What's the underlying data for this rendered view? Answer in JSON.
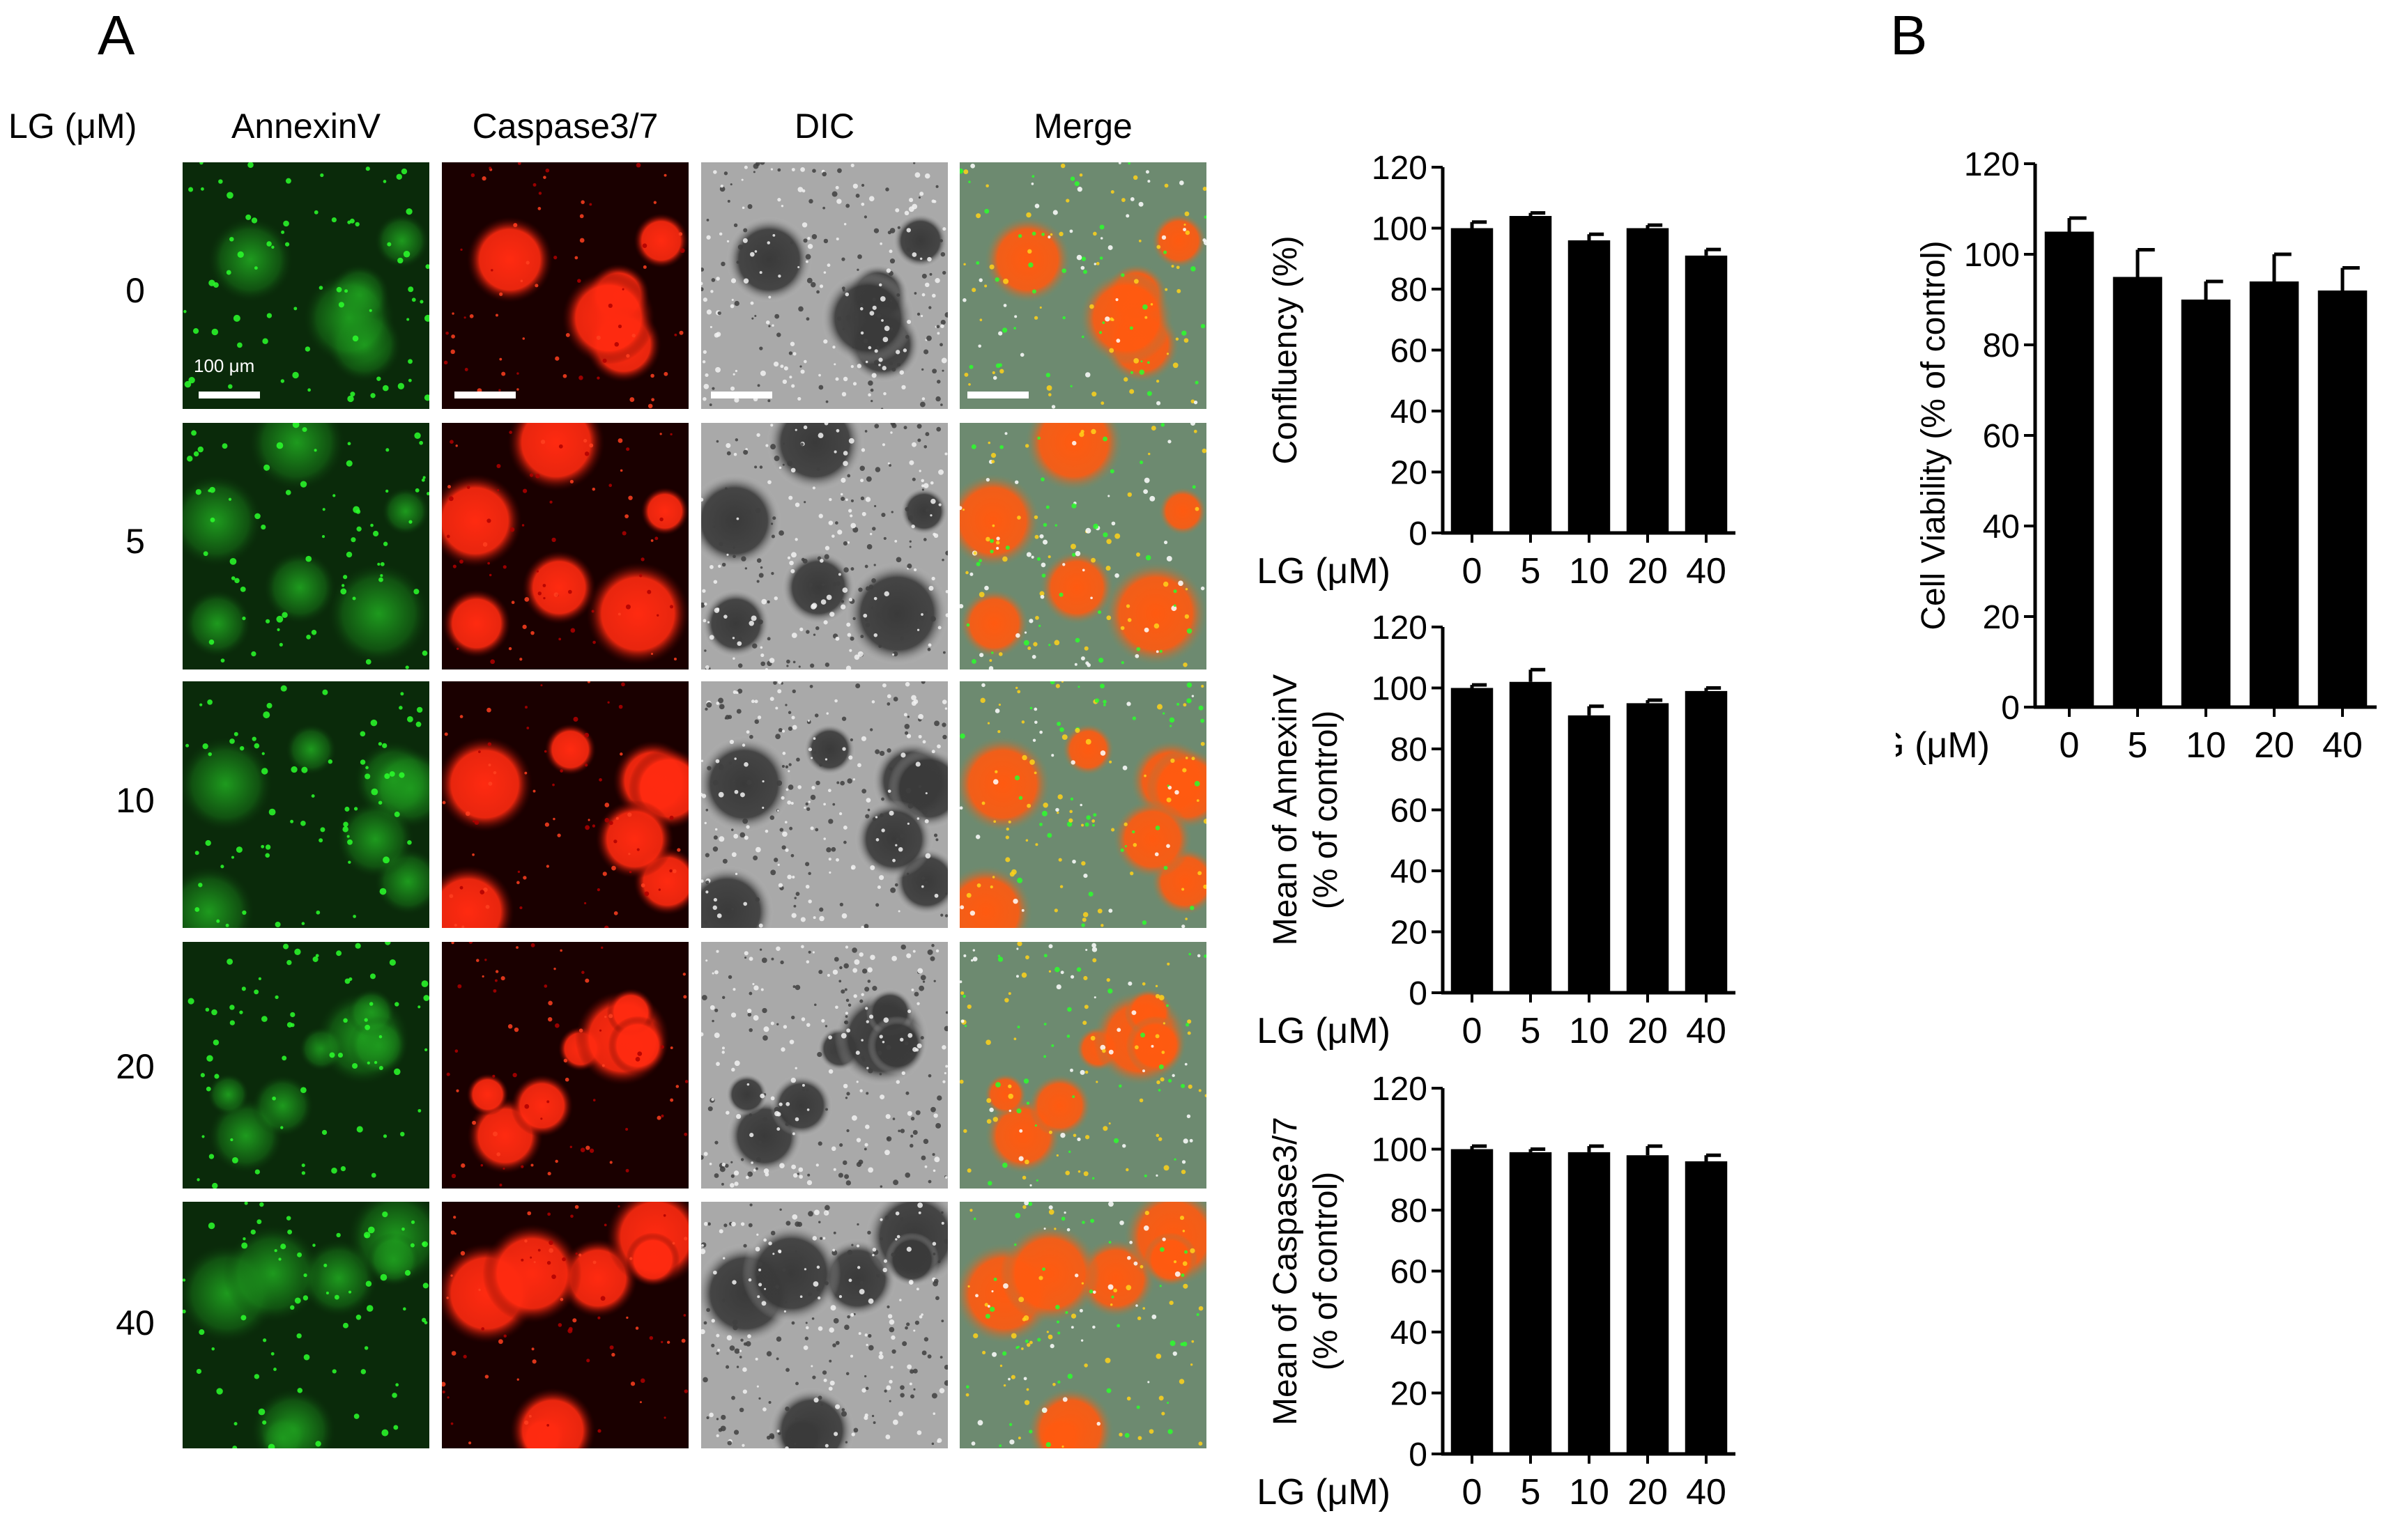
{
  "panel_a": {
    "letter": "A",
    "row_header": "LG (μM)",
    "columns": [
      "AnnexinV",
      "Caspase3/7",
      "DIC",
      "Merge"
    ],
    "rows": [
      "0",
      "5",
      "10",
      "20",
      "40"
    ],
    "scale_label": "100 μm"
  },
  "panel_b": {
    "letter": "B"
  },
  "colors": {
    "annexin": "#1fc21f",
    "caspase": "#ff2a10",
    "bar": "#000000"
  },
  "chart_data": [
    {
      "type": "bar",
      "categories": [
        "0",
        "5",
        "10",
        "20",
        "40"
      ],
      "values": [
        100,
        104,
        96,
        100,
        91
      ],
      "errors": [
        2,
        1,
        2,
        1,
        2
      ],
      "ylabel": [
        "Confluency (%)"
      ],
      "xlabel": "LG (μM)",
      "ylim": [
        0,
        120
      ],
      "yticks": [
        0,
        20,
        40,
        60,
        80,
        100,
        120
      ]
    },
    {
      "type": "bar",
      "categories": [
        "0",
        "5",
        "10",
        "20",
        "40"
      ],
      "values": [
        100,
        102,
        91,
        95,
        99
      ],
      "errors": [
        1,
        4,
        3,
        1,
        1
      ],
      "ylabel": [
        "Mean of AnnexinV",
        "(% of control)"
      ],
      "xlabel": "LG (μM)",
      "ylim": [
        0,
        120
      ],
      "yticks": [
        0,
        20,
        40,
        60,
        80,
        100,
        120
      ]
    },
    {
      "type": "bar",
      "categories": [
        "0",
        "5",
        "10",
        "20",
        "40"
      ],
      "values": [
        100,
        99,
        99,
        98,
        96
      ],
      "errors": [
        1,
        1,
        2,
        3,
        2
      ],
      "ylabel": [
        "Mean of Caspase3/7",
        "(% of control)"
      ],
      "xlabel": "LG (μM)",
      "ylim": [
        0,
        120
      ],
      "yticks": [
        0,
        20,
        40,
        60,
        80,
        100,
        120
      ]
    },
    {
      "type": "bar",
      "categories": [
        "0",
        "5",
        "10",
        "20",
        "40"
      ],
      "values": [
        105,
        95,
        90,
        94,
        92
      ],
      "errors": [
        3,
        6,
        4,
        6,
        5
      ],
      "ylabel": [
        "Cell Viability (% of control)"
      ],
      "xlabel": "LG (μM)",
      "ylim": [
        0,
        120
      ],
      "yticks": [
        0,
        20,
        40,
        60,
        80,
        100,
        120
      ]
    }
  ]
}
